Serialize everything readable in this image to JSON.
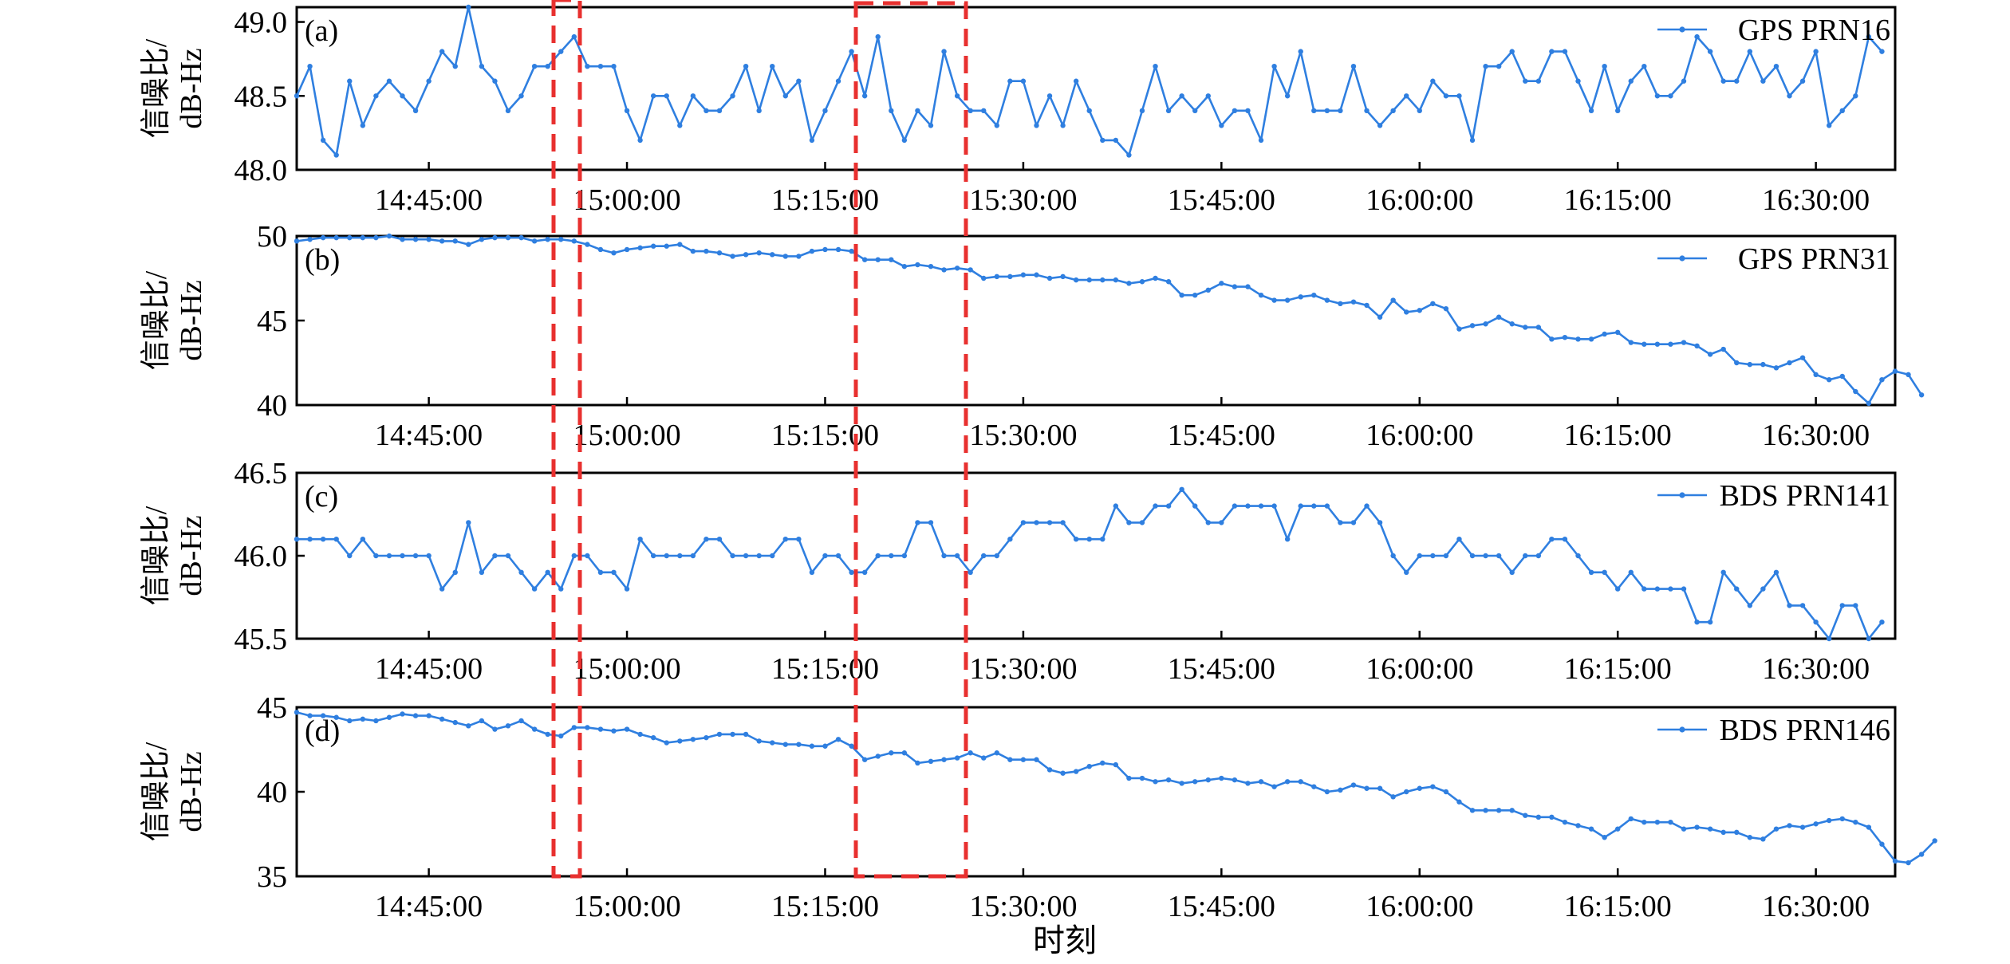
{
  "figure": {
    "xlabel": "时刻",
    "ylabel_line1": "信噪比/",
    "ylabel_line2": "dB-Hz",
    "line_color": "#2f7fe0",
    "highlight_color": "#e8302f"
  },
  "chart_data": [
    {
      "type": "line",
      "panel": "(a)",
      "series_name": "GPS PRN16",
      "ylim": [
        48.0,
        49.1
      ],
      "yticks": [
        "49.0",
        "48.5",
        "48.0"
      ],
      "ytick_values": [
        49.0,
        48.5,
        48.0
      ],
      "xticks": [
        "14:45:00",
        "15:00:00",
        "15:15:00",
        "15:30:00",
        "15:45:00",
        "16:00:00",
        "16:15:00",
        "16:30:00"
      ],
      "time_start": "14:35:00",
      "time_step_min": 1,
      "values": [
        48.5,
        48.7,
        48.2,
        48.1,
        48.6,
        48.3,
        48.5,
        48.6,
        48.5,
        48.4,
        48.6,
        48.8,
        48.7,
        49.1,
        48.7,
        48.6,
        48.4,
        48.5,
        48.7,
        48.7,
        48.8,
        48.9,
        48.7,
        48.7,
        48.7,
        48.4,
        48.2,
        48.5,
        48.5,
        48.3,
        48.5,
        48.4,
        48.4,
        48.5,
        48.7,
        48.4,
        48.7,
        48.5,
        48.6,
        48.2,
        48.4,
        48.6,
        48.8,
        48.5,
        48.9,
        48.4,
        48.2,
        48.4,
        48.3,
        48.8,
        48.5,
        48.4,
        48.4,
        48.3,
        48.6,
        48.6,
        48.3,
        48.5,
        48.3,
        48.6,
        48.4,
        48.2,
        48.2,
        48.1,
        48.4,
        48.7,
        48.4,
        48.5,
        48.4,
        48.5,
        48.3,
        48.4,
        48.4,
        48.2,
        48.7,
        48.5,
        48.8,
        48.4,
        48.4,
        48.4,
        48.7,
        48.4,
        48.3,
        48.4,
        48.5,
        48.4,
        48.6,
        48.5,
        48.5,
        48.2,
        48.7,
        48.7,
        48.8,
        48.6,
        48.6,
        48.8,
        48.8,
        48.6,
        48.4,
        48.7,
        48.4,
        48.6,
        48.7,
        48.5,
        48.5,
        48.6,
        48.9,
        48.8,
        48.6,
        48.6,
        48.8,
        48.6,
        48.7,
        48.5,
        48.6,
        48.8,
        48.3,
        48.4,
        48.5,
        48.9,
        48.8
      ]
    },
    {
      "type": "line",
      "panel": "(b)",
      "series_name": "GPS PRN31",
      "ylim": [
        40,
        50
      ],
      "yticks": [
        "50",
        "45",
        "40"
      ],
      "ytick_values": [
        50,
        45,
        40
      ],
      "xticks": [
        "14:45:00",
        "15:00:00",
        "15:15:00",
        "15:30:00",
        "15:45:00",
        "16:00:00",
        "16:15:00",
        "16:30:00"
      ],
      "time_start": "14:35:00",
      "time_step_min": 1,
      "values": [
        49.7,
        49.8,
        49.9,
        49.9,
        49.9,
        49.9,
        49.9,
        50.0,
        49.8,
        49.8,
        49.8,
        49.7,
        49.7,
        49.5,
        49.8,
        49.9,
        49.9,
        49.9,
        49.7,
        49.8,
        49.8,
        49.7,
        49.5,
        49.2,
        49.0,
        49.2,
        49.3,
        49.4,
        49.4,
        49.5,
        49.1,
        49.1,
        49.0,
        48.8,
        48.9,
        49.0,
        48.9,
        48.8,
        48.8,
        49.1,
        49.2,
        49.2,
        49.1,
        48.6,
        48.6,
        48.6,
        48.2,
        48.3,
        48.2,
        48.0,
        48.1,
        48.0,
        47.5,
        47.6,
        47.6,
        47.7,
        47.7,
        47.5,
        47.6,
        47.4,
        47.4,
        47.4,
        47.4,
        47.2,
        47.3,
        47.5,
        47.3,
        46.5,
        46.5,
        46.8,
        47.2,
        47.0,
        47.0,
        46.5,
        46.2,
        46.2,
        46.4,
        46.5,
        46.2,
        46.0,
        46.1,
        45.9,
        45.2,
        46.2,
        45.5,
        45.6,
        46.0,
        45.7,
        44.5,
        44.7,
        44.8,
        45.2,
        44.8,
        44.6,
        44.6,
        43.9,
        44.0,
        43.9,
        43.9,
        44.2,
        44.3,
        43.7,
        43.6,
        43.6,
        43.6,
        43.7,
        43.5,
        43.0,
        43.3,
        42.5,
        42.4,
        42.4,
        42.2,
        42.5,
        42.8,
        41.8,
        41.5,
        41.7,
        40.8,
        40.1,
        41.5,
        42.0,
        41.8,
        40.6
      ]
    },
    {
      "type": "line",
      "panel": "(c)",
      "series_name": "BDS PRN141",
      "ylim": [
        45.5,
        46.5
      ],
      "yticks": [
        "46.5",
        "46.0",
        "45.5"
      ],
      "ytick_values": [
        46.5,
        46.0,
        45.5
      ],
      "xticks": [
        "14:45:00",
        "15:00:00",
        "15:15:00",
        "15:30:00",
        "15:45:00",
        "16:00:00",
        "16:15:00",
        "16:30:00"
      ],
      "time_start": "14:35:00",
      "time_step_min": 1,
      "values": [
        46.1,
        46.1,
        46.1,
        46.1,
        46.0,
        46.1,
        46.0,
        46.0,
        46.0,
        46.0,
        46.0,
        45.8,
        45.9,
        46.2,
        45.9,
        46.0,
        46.0,
        45.9,
        45.8,
        45.9,
        45.8,
        46.0,
        46.0,
        45.9,
        45.9,
        45.8,
        46.1,
        46.0,
        46.0,
        46.0,
        46.0,
        46.1,
        46.1,
        46.0,
        46.0,
        46.0,
        46.0,
        46.1,
        46.1,
        45.9,
        46.0,
        46.0,
        45.9,
        45.9,
        46.0,
        46.0,
        46.0,
        46.2,
        46.2,
        46.0,
        46.0,
        45.9,
        46.0,
        46.0,
        46.1,
        46.2,
        46.2,
        46.2,
        46.2,
        46.1,
        46.1,
        46.1,
        46.3,
        46.2,
        46.2,
        46.3,
        46.3,
        46.4,
        46.3,
        46.2,
        46.2,
        46.3,
        46.3,
        46.3,
        46.3,
        46.1,
        46.3,
        46.3,
        46.3,
        46.2,
        46.2,
        46.3,
        46.2,
        46.0,
        45.9,
        46.0,
        46.0,
        46.0,
        46.1,
        46.0,
        46.0,
        46.0,
        45.9,
        46.0,
        46.0,
        46.1,
        46.1,
        46.0,
        45.9,
        45.9,
        45.8,
        45.9,
        45.8,
        45.8,
        45.8,
        45.8,
        45.6,
        45.6,
        45.9,
        45.8,
        45.7,
        45.8,
        45.9,
        45.7,
        45.7,
        45.6,
        45.5,
        45.7,
        45.7,
        45.5,
        45.6
      ]
    },
    {
      "type": "line",
      "panel": "(d)",
      "series_name": "BDS PRN146",
      "ylim": [
        35,
        45
      ],
      "yticks": [
        "45",
        "40",
        "35"
      ],
      "ytick_values": [
        45,
        40,
        35
      ],
      "xticks": [
        "14:45:00",
        "15:00:00",
        "15:15:00",
        "15:30:00",
        "15:45:00",
        "16:00:00",
        "16:15:00",
        "16:30:00"
      ],
      "time_start": "14:35:00",
      "time_step_min": 1,
      "values": [
        44.7,
        44.5,
        44.5,
        44.4,
        44.2,
        44.3,
        44.2,
        44.4,
        44.6,
        44.5,
        44.5,
        44.3,
        44.1,
        43.9,
        44.2,
        43.7,
        43.9,
        44.2,
        43.7,
        43.4,
        43.3,
        43.8,
        43.8,
        43.7,
        43.6,
        43.7,
        43.4,
        43.2,
        42.9,
        43.0,
        43.1,
        43.2,
        43.4,
        43.4,
        43.4,
        43.0,
        42.9,
        42.8,
        42.8,
        42.7,
        42.7,
        43.1,
        42.7,
        41.9,
        42.1,
        42.3,
        42.3,
        41.7,
        41.8,
        41.9,
        42.0,
        42.3,
        42.0,
        42.3,
        41.9,
        41.9,
        41.9,
        41.3,
        41.1,
        41.2,
        41.5,
        41.7,
        41.6,
        40.8,
        40.8,
        40.6,
        40.7,
        40.5,
        40.6,
        40.7,
        40.8,
        40.7,
        40.5,
        40.6,
        40.3,
        40.6,
        40.6,
        40.3,
        40.0,
        40.1,
        40.4,
        40.2,
        40.2,
        39.7,
        40.0,
        40.2,
        40.3,
        40.0,
        39.4,
        38.9,
        38.9,
        38.9,
        38.9,
        38.6,
        38.5,
        38.5,
        38.2,
        38.0,
        37.8,
        37.3,
        37.8,
        38.4,
        38.2,
        38.2,
        38.2,
        37.8,
        37.9,
        37.8,
        37.6,
        37.6,
        37.3,
        37.2,
        37.8,
        38.0,
        37.9,
        38.1,
        38.3,
        38.4,
        38.2,
        37.9,
        36.9,
        35.9,
        35.8,
        36.3,
        37.1
      ]
    }
  ]
}
